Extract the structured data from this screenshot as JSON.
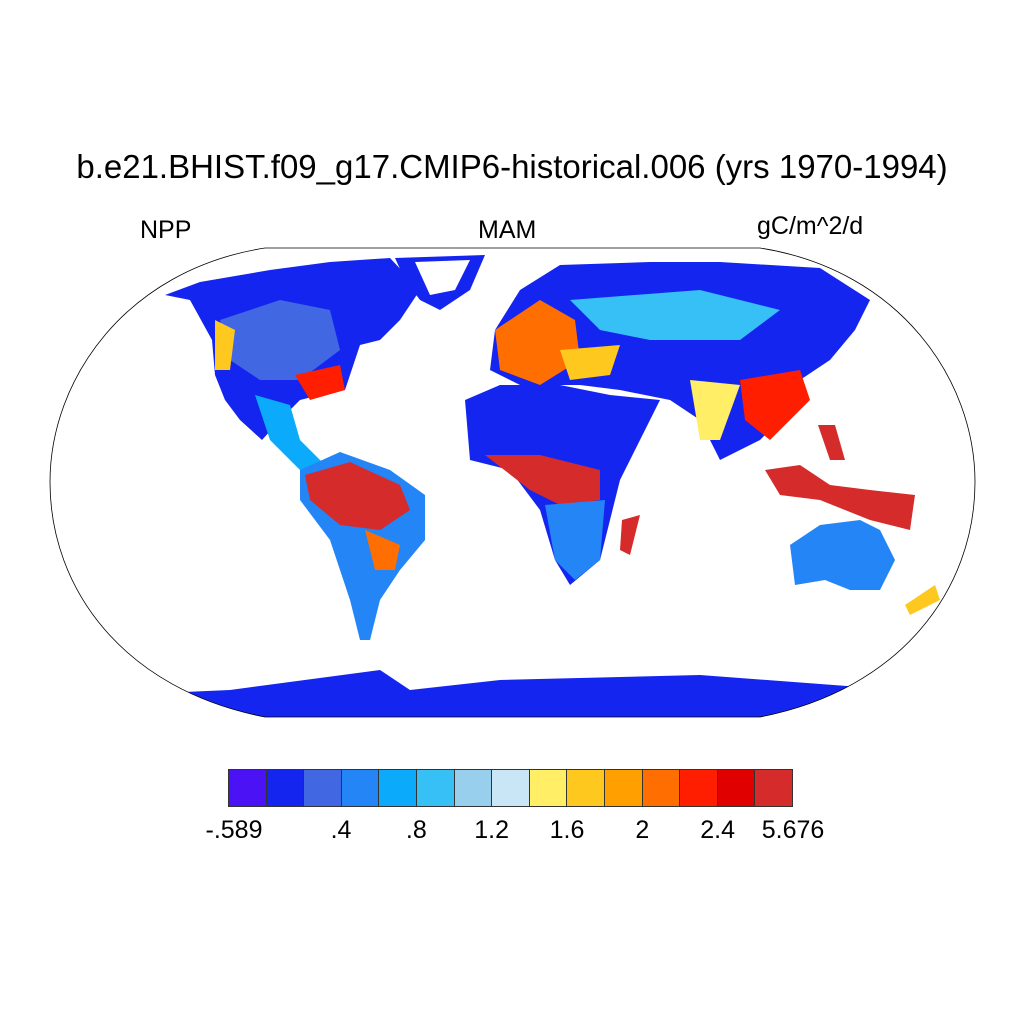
{
  "title": "b.e21.BHIST.f09_g17.CMIP6-historical.006 (yrs 1970-1994)",
  "variable": "NPP",
  "season": "MAM",
  "units": "gC/m^2/d",
  "colorbar": {
    "colors": [
      "#4A12F5",
      "#1525F0",
      "#4267E2",
      "#2385F6",
      "#0CAAFA",
      "#36C0F5",
      "#98CFEC",
      "#C8E6F6",
      "#FFEE66",
      "#FFC81E",
      "#FFA000",
      "#FF6E00",
      "#FF1E00",
      "#E10000",
      "#D52B2B"
    ],
    "labels": [
      "-.589",
      ".4",
      ".8",
      "1.2",
      "1.6",
      "2",
      "2.4",
      "5.676"
    ]
  }
}
